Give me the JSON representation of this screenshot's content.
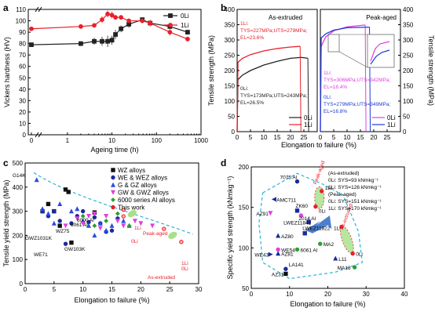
{
  "panel_labels": [
    "a",
    "b",
    "c",
    "d"
  ],
  "colors": {
    "zero_li": "#222222",
    "one_li": "#e8202a",
    "blue": "#1b3bd8",
    "magenta": "#e03fe0",
    "green": "#2aa02a",
    "cyan_dashed": "#2ab3d6"
  },
  "chart_data": [
    {
      "id": "a",
      "type": "line",
      "xlabel": "Ageing time (h)",
      "ylabel": "Vickers hardness (HV)",
      "xscale": "log",
      "x_ticklabels": [
        "0",
        "1",
        "10",
        "100",
        "1000"
      ],
      "xlim": [
        0.35,
        1000
      ],
      "ylim": [
        0,
        110
      ],
      "y_ticks": [
        0,
        10,
        20,
        30,
        40,
        50,
        60,
        70,
        80,
        90,
        100,
        110
      ],
      "legend": [
        "0Li",
        "1Li"
      ],
      "legend_position": "top-right",
      "series": [
        {
          "name": "0Li",
          "x": [
            0,
            2,
            4,
            6,
            8,
            10,
            12,
            16,
            24,
            48,
            72,
            200,
            500
          ],
          "y": [
            79,
            80,
            82,
            82,
            82,
            83,
            88,
            93,
            97,
            101,
            98,
            95,
            90
          ],
          "err": [
            1,
            2,
            3,
            4,
            5,
            4,
            4,
            3,
            3,
            2,
            2,
            2,
            2
          ]
        },
        {
          "name": "1Li",
          "x": [
            0,
            2,
            4,
            6,
            8,
            10,
            12,
            16,
            24,
            48,
            72,
            200,
            500
          ],
          "y": [
            93,
            95,
            96,
            101,
            106,
            105,
            103,
            103,
            100,
            100,
            98,
            90,
            84
          ],
          "err": [
            1,
            1,
            2,
            3,
            3,
            3,
            2,
            2,
            2,
            2,
            3,
            3,
            2
          ]
        }
      ]
    },
    {
      "id": "b",
      "type": "line",
      "xlabel": "Elongation to failure (%)",
      "ylabel": "Tensile strength (MPa)",
      "ylabel_right": "Tensile strength (MPa)",
      "ylim": [
        0,
        400
      ],
      "y_ticks": [
        0,
        50,
        100,
        150,
        200,
        250,
        300,
        350,
        400
      ],
      "subpanels": [
        {
          "title": "As-extruded",
          "xlim": [
            0,
            30
          ],
          "x_ticks": [
            0,
            5,
            10,
            15,
            20,
            25
          ],
          "legend": [
            "0Li",
            "1Li"
          ],
          "series": [
            {
              "name": "0Li",
              "strain": [
                0,
                0.3,
                2,
                5,
                10,
                15,
                20,
                24,
                26.5
              ],
              "stress": [
                0,
                170,
                185,
                200,
                218,
                230,
                240,
                243,
                240
              ]
            },
            {
              "name": "1Li",
              "strain": [
                0,
                0.3,
                2,
                5,
                10,
                15,
                20,
                23.6
              ],
              "stress": [
                0,
                227,
                240,
                252,
                264,
                272,
                277,
                279
              ]
            }
          ],
          "annotations": [
            {
              "text": "1Li:",
              "series": "1Li"
            },
            {
              "text": "TYS=227MPa;UTS=279MPa;",
              "series": "1Li"
            },
            {
              "text": "EL=23.6%",
              "series": "1Li"
            },
            {
              "text": "0Li:",
              "series": "0Li"
            },
            {
              "text": "TYS=173MPa;UTS=243MPa;",
              "series": "0Li"
            },
            {
              "text": "EL=26.5%",
              "series": "0Li"
            }
          ]
        },
        {
          "title": "Peak-aged",
          "xlim": [
            0,
            30
          ],
          "x_ticks": [
            0,
            5,
            10,
            15,
            20,
            25
          ],
          "legend": [
            "0Li",
            "1Li"
          ],
          "series": [
            {
              "name": "0Li",
              "strain": [
                0,
                0.3,
                2,
                5,
                10,
                16.8
              ],
              "stress": [
                0,
                279,
                310,
                330,
                343,
                349
              ]
            },
            {
              "name": "1Li",
              "strain": [
                0,
                0.3,
                2,
                5,
                10,
                18.4
              ],
              "stress": [
                0,
                306,
                320,
                332,
                340,
                342
              ]
            }
          ],
          "annotations": [
            {
              "text": "1Li:",
              "series": "1Li"
            },
            {
              "text": "TYS=306MPa;UTS=342MPa;",
              "series": "1Li"
            },
            {
              "text": "EL=18.4%",
              "series": "1Li"
            },
            {
              "text": "0Li:",
              "series": "0Li"
            },
            {
              "text": "TYS=279MPa;UTS=349MPa;",
              "series": "0Li"
            },
            {
              "text": "EL=16.8%",
              "series": "0Li"
            }
          ]
        }
      ]
    },
    {
      "id": "c",
      "type": "scatter",
      "xlabel": "Elongation to failure (%)",
      "ylabel": "Tensile yield strength (MPa)",
      "xlim": [
        0,
        30
      ],
      "ylim": [
        0,
        500
      ],
      "x_ticks": [
        0,
        5,
        10,
        15,
        20,
        25,
        30
      ],
      "y_ticks": [
        0,
        100,
        200,
        300,
        400,
        500
      ],
      "legend_position": "top-right",
      "series": [
        {
          "name": "WZ alloys",
          "marker": "square",
          "color": "#111111",
          "points": [
            [
              7,
              390
            ],
            [
              5,
              300
            ],
            [
              7.5,
              380
            ],
            [
              4,
              330
            ],
            [
              3,
              300
            ],
            [
              6,
              240
            ],
            [
              12,
              295
            ],
            [
              8,
              170
            ]
          ]
        },
        {
          "name": "WE & WEZ alloys",
          "marker": "circle",
          "color": "#1b2a9e",
          "points": [
            [
              3,
              300
            ],
            [
              4,
              280
            ],
            [
              5,
              300
            ],
            [
              6,
              260
            ],
            [
              7,
              165
            ],
            [
              8,
              250
            ],
            [
              9,
              280
            ],
            [
              10,
              300
            ],
            [
              11,
              255
            ],
            [
              12,
              275
            ],
            [
              13,
              250
            ],
            [
              14,
              215
            ],
            [
              15,
              220
            ],
            [
              16,
              270
            ]
          ]
        },
        {
          "name": "G & GZ alloys",
          "marker": "triangle",
          "color": "#2a4adf",
          "points": [
            [
              2,
              430
            ],
            [
              3,
              310
            ],
            [
              4,
              290
            ],
            [
              5,
              250
            ],
            [
              6,
              330
            ],
            [
              8,
              300
            ],
            [
              9,
              310
            ],
            [
              10,
              260
            ],
            [
              11,
              240
            ],
            [
              12,
              200
            ],
            [
              13,
              250
            ],
            [
              14,
              220
            ],
            [
              15,
              240
            ],
            [
              17,
              260
            ],
            [
              18,
              240
            ]
          ]
        },
        {
          "name": "GW & GWZ alloys",
          "marker": "triangle-down",
          "color": "#e03fe0",
          "points": [
            [
              7,
              240
            ],
            [
              9,
              270
            ],
            [
              10,
              250
            ],
            [
              11,
              280
            ],
            [
              12,
              290
            ],
            [
              13,
              230
            ],
            [
              14,
              280
            ],
            [
              16,
              260
            ],
            [
              17,
              240
            ],
            [
              19,
              260
            ],
            [
              20,
              250
            ],
            [
              22,
              240
            ]
          ]
        },
        {
          "name": "6000 series Al alloys",
          "marker": "diamond",
          "color": "#2aa02a",
          "points": [
            [
              10,
              280
            ],
            [
              12,
              240
            ],
            [
              14,
              260
            ],
            [
              16,
              290
            ],
            [
              18,
              240
            ]
          ]
        },
        {
          "name": "This work",
          "marker": "circle",
          "color": "#e8202a",
          "points": [
            [
              17,
              306
            ],
            [
              17,
              279
            ],
            [
              24,
              227
            ],
            [
              27,
              173
            ]
          ]
        }
      ],
      "annotations": [
        "G14K",
        "6000 Al",
        "6061 Al",
        "WZ75",
        "GWZ1031K",
        "GW103K",
        "WE71",
        "1Li",
        "0Li",
        "Peak-aged",
        "1Li",
        "0Li",
        "As-extruded"
      ]
    },
    {
      "id": "d",
      "type": "scatter",
      "xlabel": "Elongation to failure (%)",
      "ylabel": "Specific yield strength (kNmkg⁻¹)",
      "xlim": [
        0,
        40
      ],
      "ylim": [
        50,
        200
      ],
      "x_ticks": [
        0,
        10,
        20,
        30,
        40
      ],
      "y_ticks": [
        50,
        100,
        150,
        200
      ],
      "legend": [
        "(As-extruded)",
        "0Li: SYS=93 kNmkg⁻¹",
        "1Li: SYS=126 kNmkg⁻¹",
        "(Peak-aged)",
        "0Li: SYS=151 kNmkg⁻¹",
        "1Li: SYS=170 kNmkg⁻¹"
      ],
      "points": [
        {
          "label": "7075 Al",
          "x": 12,
          "y": 182,
          "marker": "circle",
          "color": "#1b2a9e"
        },
        {
          "label": "AMC711",
          "x": 6,
          "y": 160,
          "marker": "triangle-left",
          "color": "#1b2a9e"
        },
        {
          "label": "AZ91",
          "x": 5,
          "y": 143,
          "marker": "triangle-down",
          "color": "#e03fe0"
        },
        {
          "label": "ZK60",
          "x": 12,
          "y": 146,
          "marker": "square",
          "color": "#1b2a9e"
        },
        {
          "label": "2014 Al",
          "x": 13,
          "y": 140,
          "marker": "circle",
          "color": "#e03fe0"
        },
        {
          "label": "LWEZ11842",
          "x": 15,
          "y": 132,
          "marker": "square",
          "color": "#1b2a9e"
        },
        {
          "label": "LWEZ11822",
          "x": 14,
          "y": 118,
          "marker": "square",
          "color": "#1b2a9e"
        },
        {
          "label": "AZ80",
          "x": 7,
          "y": 115,
          "marker": "triangle",
          "color": "#1b2a9e"
        },
        {
          "label": "MA2",
          "x": 18,
          "y": 105,
          "marker": "circle",
          "color": "#2aa02a"
        },
        {
          "label": "WE54",
          "x": 7,
          "y": 98,
          "marker": "circle",
          "color": "#e03fe0"
        },
        {
          "label": "6061 Al",
          "x": 12,
          "y": 98,
          "marker": "circle",
          "color": "#2aa02a"
        },
        {
          "label": "AZ81",
          "x": 7,
          "y": 93,
          "marker": "triangle",
          "color": "#1b2a9e"
        },
        {
          "label": "WE43",
          "x": 5,
          "y": 92,
          "marker": "triangle-right",
          "color": "#1b2a9e"
        },
        {
          "label": "L11",
          "x": 22,
          "y": 87,
          "marker": "triangle",
          "color": "#1b2a9e"
        },
        {
          "label": "LA141",
          "x": 9,
          "y": 74,
          "marker": "circle",
          "color": "#1b2a9e"
        },
        {
          "label": "MA18",
          "x": 27,
          "y": 76,
          "marker": "circle",
          "color": "#2aa02a"
        },
        {
          "label": "AZ31",
          "x": 9,
          "y": 68,
          "marker": "square",
          "color": "#111111"
        },
        {
          "label": "1Li",
          "x": 18.4,
          "y": 170,
          "marker": "circle",
          "color": "#e8202a"
        },
        {
          "label": "0Li",
          "x": 16.8,
          "y": 151,
          "marker": "circle",
          "color": "#e8202a"
        },
        {
          "label": "1Li",
          "x": 23.6,
          "y": 126,
          "marker": "circle",
          "color": "#e8202a"
        },
        {
          "label": "0Li",
          "x": 26.5,
          "y": 93,
          "marker": "circle",
          "color": "#e8202a"
        }
      ],
      "annotations": [
        "Peak-aged",
        "As-extruded"
      ]
    }
  ]
}
